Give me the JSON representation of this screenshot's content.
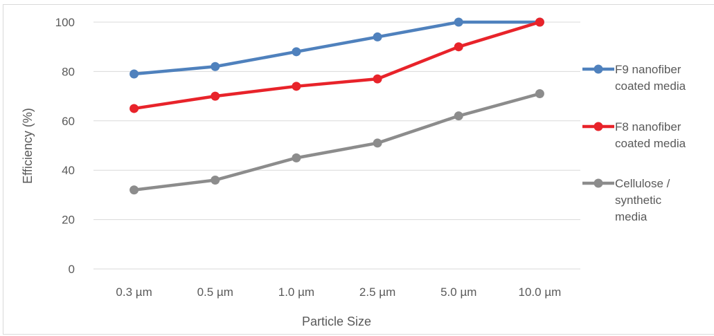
{
  "chart_data": {
    "type": "line",
    "title": "",
    "xlabel": "Particle Size",
    "ylabel": "Efficiency (%)",
    "categories": [
      "0.3 µm",
      "0.5 µm",
      "1.0 µm",
      "2.5 µm",
      "5.0 µm",
      "10.0 µm"
    ],
    "ylim": [
      0,
      100
    ],
    "yticks": [
      "0",
      "20",
      "40",
      "60",
      "80",
      "100"
    ],
    "grid": true,
    "legend_position": "right",
    "series": [
      {
        "name": "F9 nanofiber coated media",
        "legend_lines": [
          "F9 nanofiber",
          "coated media"
        ],
        "color": "#4f81bd",
        "values": [
          79,
          82,
          88,
          94,
          100,
          100
        ]
      },
      {
        "name": "F8 nanofiber coated media",
        "legend_lines": [
          "F8 nanofiber",
          "coated media"
        ],
        "color": "#e8232a",
        "values": [
          65,
          70,
          74,
          77,
          90,
          100
        ]
      },
      {
        "name": "Cellulose / synthetic media",
        "legend_lines": [
          "Cellulose /",
          "synthetic",
          "media"
        ],
        "color": "#8c8c8c",
        "values": [
          32,
          36,
          45,
          51,
          62,
          71
        ]
      }
    ]
  }
}
